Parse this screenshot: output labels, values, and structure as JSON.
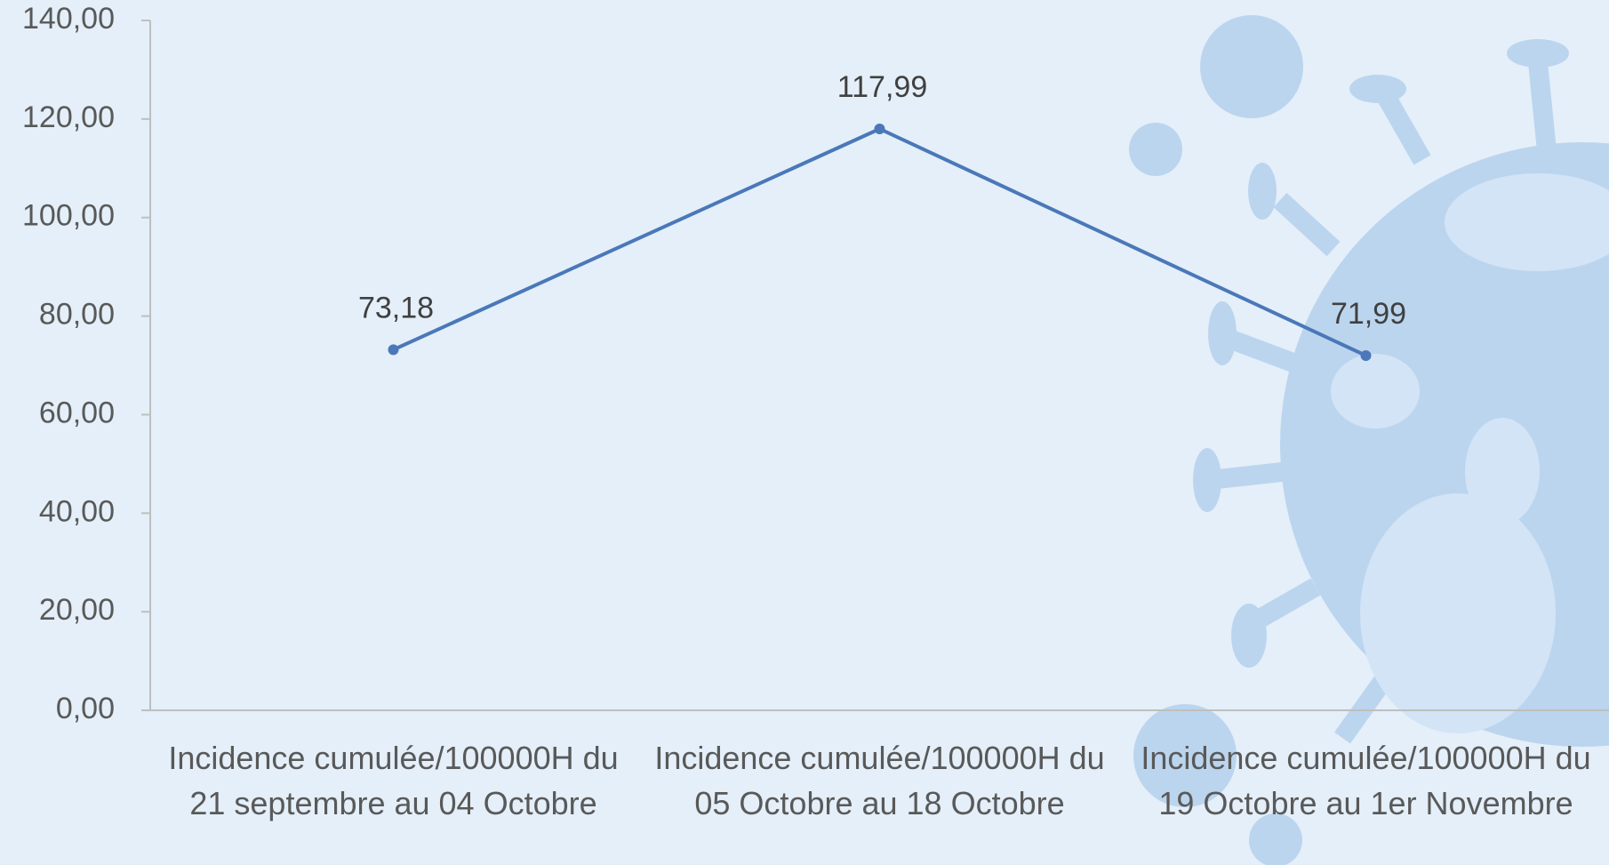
{
  "chart_data": {
    "type": "line",
    "categories": [
      "Incidence cumulée/100000H du 21 septembre au 04 Octobre",
      "Incidence cumulée/100000H du 05 Octobre au 18 Octobre",
      "Incidence cumulée/100000H du 19 Octobre au 1er Novembre"
    ],
    "values": [
      73.18,
      117.99,
      71.99
    ],
    "value_labels": [
      "73,18",
      "117,99",
      "71,99"
    ],
    "color": "#4a78b8",
    "ylim": [
      0,
      140
    ],
    "yticks": [
      {
        "value": 0,
        "label": "0,00"
      },
      {
        "value": 20,
        "label": "20,00"
      },
      {
        "value": 40,
        "label": "40,00"
      },
      {
        "value": 60,
        "label": "60,00"
      },
      {
        "value": 80,
        "label": "80,00"
      },
      {
        "value": 100,
        "label": "100,00"
      },
      {
        "value": 120,
        "label": "120,00"
      },
      {
        "value": 140,
        "label": "140,00"
      }
    ],
    "grid": false
  }
}
